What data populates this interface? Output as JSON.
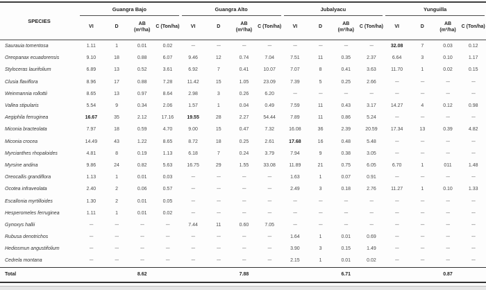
{
  "table": {
    "species_header": "SPECIES",
    "groups": [
      {
        "label": "Guangra Bajo"
      },
      {
        "label": "Guangra Alto"
      },
      {
        "label": "Jubalyacu"
      },
      {
        "label": "Yunguilla"
      }
    ],
    "sub_headers": [
      "VI",
      "D",
      "AB (m²/ha)",
      "C (Ton/ha)"
    ],
    "dash": "---",
    "rows": [
      {
        "species": "Saurauia tomentosa",
        "values": [
          "1.11",
          "1",
          "0.01",
          "0.02",
          "---",
          "---",
          "---",
          "---",
          "---",
          "---",
          "---",
          "---",
          "32.08",
          "7",
          "0.03",
          "0.12"
        ],
        "bold": [
          12
        ]
      },
      {
        "species": "Oreopanax ecuadorensis",
        "values": [
          "9.10",
          "18",
          "0.88",
          "6.07",
          "9.46",
          "12",
          "0.74",
          "7.04",
          "7.51",
          "11",
          "0.35",
          "2.37",
          "6.64",
          "3",
          "0.10",
          "1.17"
        ],
        "bold": []
      },
      {
        "species": "Styloceras laurifolium",
        "values": [
          "6.89",
          "13",
          "0.52",
          "3.61",
          "6.92",
          "7",
          "0.41",
          "10.07",
          "7.07",
          "8",
          "0.41",
          "3.63",
          "11.70",
          "1",
          "0.02",
          "0.15"
        ],
        "bold": []
      },
      {
        "species": "Clusia flaviflora",
        "values": [
          "8.96",
          "17",
          "0.88",
          "7.28",
          "11.42",
          "15",
          "1.05",
          "23.09",
          "7.39",
          "5",
          "0.25",
          "2.66",
          "---",
          "---",
          "---",
          "---"
        ],
        "bold": []
      },
      {
        "species": "Weinmannia rollottii",
        "values": [
          "8.65",
          "13",
          "0.97",
          "8.64",
          "2.98",
          "3",
          "0.26",
          "6.20",
          "---",
          "---",
          "---",
          "---",
          "---",
          "---",
          "---",
          "---"
        ],
        "bold": []
      },
      {
        "species": "Vallea stipularis",
        "values": [
          "5.54",
          "9",
          "0.34",
          "2.06",
          "1.57",
          "1",
          "0.04",
          "0.49",
          "7.59",
          "11",
          "0.43",
          "3.17",
          "14.27",
          "4",
          "0.12",
          "0.98"
        ],
        "bold": []
      },
      {
        "species": "Aegiphila ferruginea",
        "values": [
          "16.67",
          "35",
          "2.12",
          "17.16",
          "19.55",
          "28",
          "2.27",
          "54.44",
          "7.89",
          "11",
          "0.86",
          "5.24",
          "---",
          "---",
          "---",
          "---"
        ],
        "bold": [
          0,
          4
        ]
      },
      {
        "species": "Miconia bracteolata",
        "values": [
          "7.97",
          "18",
          "0.59",
          "4.70",
          "9.00",
          "15",
          "0.47",
          "7.32",
          "16.08",
          "36",
          "2.39",
          "20.59",
          "17.34",
          "13",
          "0.39",
          "4.82"
        ],
        "bold": []
      },
      {
        "species": "Miconia crocea",
        "values": [
          "14.49",
          "43",
          "1.22",
          "8.65",
          "8.72",
          "18",
          "0.25",
          "2.61",
          "17.68",
          "16",
          "0.48",
          "5.48",
          "---",
          "---",
          "---",
          "---"
        ],
        "bold": [
          8
        ]
      },
      {
        "species": "Myrcianthes rhopaloides",
        "values": [
          "4.81",
          "8",
          "0.19",
          "1.13",
          "6.18",
          "7",
          "0.24",
          "3.79",
          "7.94",
          "9",
          "0.38",
          "3.05",
          "---",
          "---",
          "---",
          "---"
        ],
        "bold": []
      },
      {
        "species": "Myrsine andina",
        "values": [
          "9.86",
          "24",
          "0.82",
          "5.63",
          "16.75",
          "29",
          "1.55",
          "33.08",
          "11.89",
          "21",
          "0.75",
          "6.05",
          "6.70",
          "1",
          "011",
          "1.48"
        ],
        "bold": []
      },
      {
        "species": "Oreocallis grandiflora",
        "values": [
          "1.13",
          "1",
          "0.01",
          "0.03",
          "---",
          "---",
          "---",
          "---",
          "1.63",
          "1",
          "0.07",
          "0.91",
          "---",
          "---",
          "---",
          "---"
        ],
        "bold": []
      },
      {
        "species": "Ocotea infraveolata",
        "values": [
          "2.40",
          "2",
          "0.06",
          "0.57",
          "---",
          "---",
          "---",
          "---",
          "2.49",
          "3",
          "0.18",
          "2.76",
          "11.27",
          "1",
          "0.10",
          "1.33"
        ],
        "bold": []
      },
      {
        "species": "Escallonia myrtilloides",
        "values": [
          "1.30",
          "2",
          "0.01",
          "0.05",
          "---",
          "---",
          "---",
          "---",
          "---",
          "---",
          "---",
          "---",
          "---",
          "---",
          "---",
          "---"
        ],
        "bold": []
      },
      {
        "species": "Hesperomeles ferruginea",
        "values": [
          "1.11",
          "1",
          "0.01",
          "0.02",
          "---",
          "---",
          "---",
          "---",
          "---",
          "---",
          "---",
          "---",
          "---",
          "---",
          "---",
          "---"
        ],
        "bold": []
      },
      {
        "species": "Gynoxys hallii",
        "values": [
          "---",
          "---",
          "---",
          "---",
          "7.44",
          "11",
          "0.60",
          "7.05",
          "---",
          "---",
          "---",
          "---",
          "---",
          "---",
          "---",
          "---"
        ],
        "bold": []
      },
      {
        "species": "Rubusa denotrichos",
        "values": [
          "---",
          "---",
          "---",
          "---",
          "---",
          "---",
          "---",
          "---",
          "1.64",
          "1",
          "0.01",
          "0.69",
          "---",
          "---",
          "---",
          "---"
        ],
        "bold": []
      },
      {
        "species": "Hediosmun angustifolium",
        "values": [
          "---",
          "---",
          "---",
          "---",
          "---",
          "---",
          "---",
          "---",
          "3.90",
          "3",
          "0.15",
          "1.49",
          "---",
          "---",
          "---",
          "---"
        ],
        "bold": []
      },
      {
        "species": "Cedrela  montana",
        "values": [
          "---",
          "---",
          "---",
          "---",
          "---",
          "---",
          "---",
          "---",
          "2.15",
          "1",
          "0.01",
          "0.02",
          "---",
          "---",
          "---",
          "---"
        ],
        "bold": []
      }
    ],
    "total": {
      "label": "Total",
      "values": [
        "",
        "",
        "8.62",
        "",
        "",
        "",
        "7.88",
        "",
        "",
        "",
        "6.71",
        "",
        "",
        "",
        "0.87",
        ""
      ]
    }
  }
}
